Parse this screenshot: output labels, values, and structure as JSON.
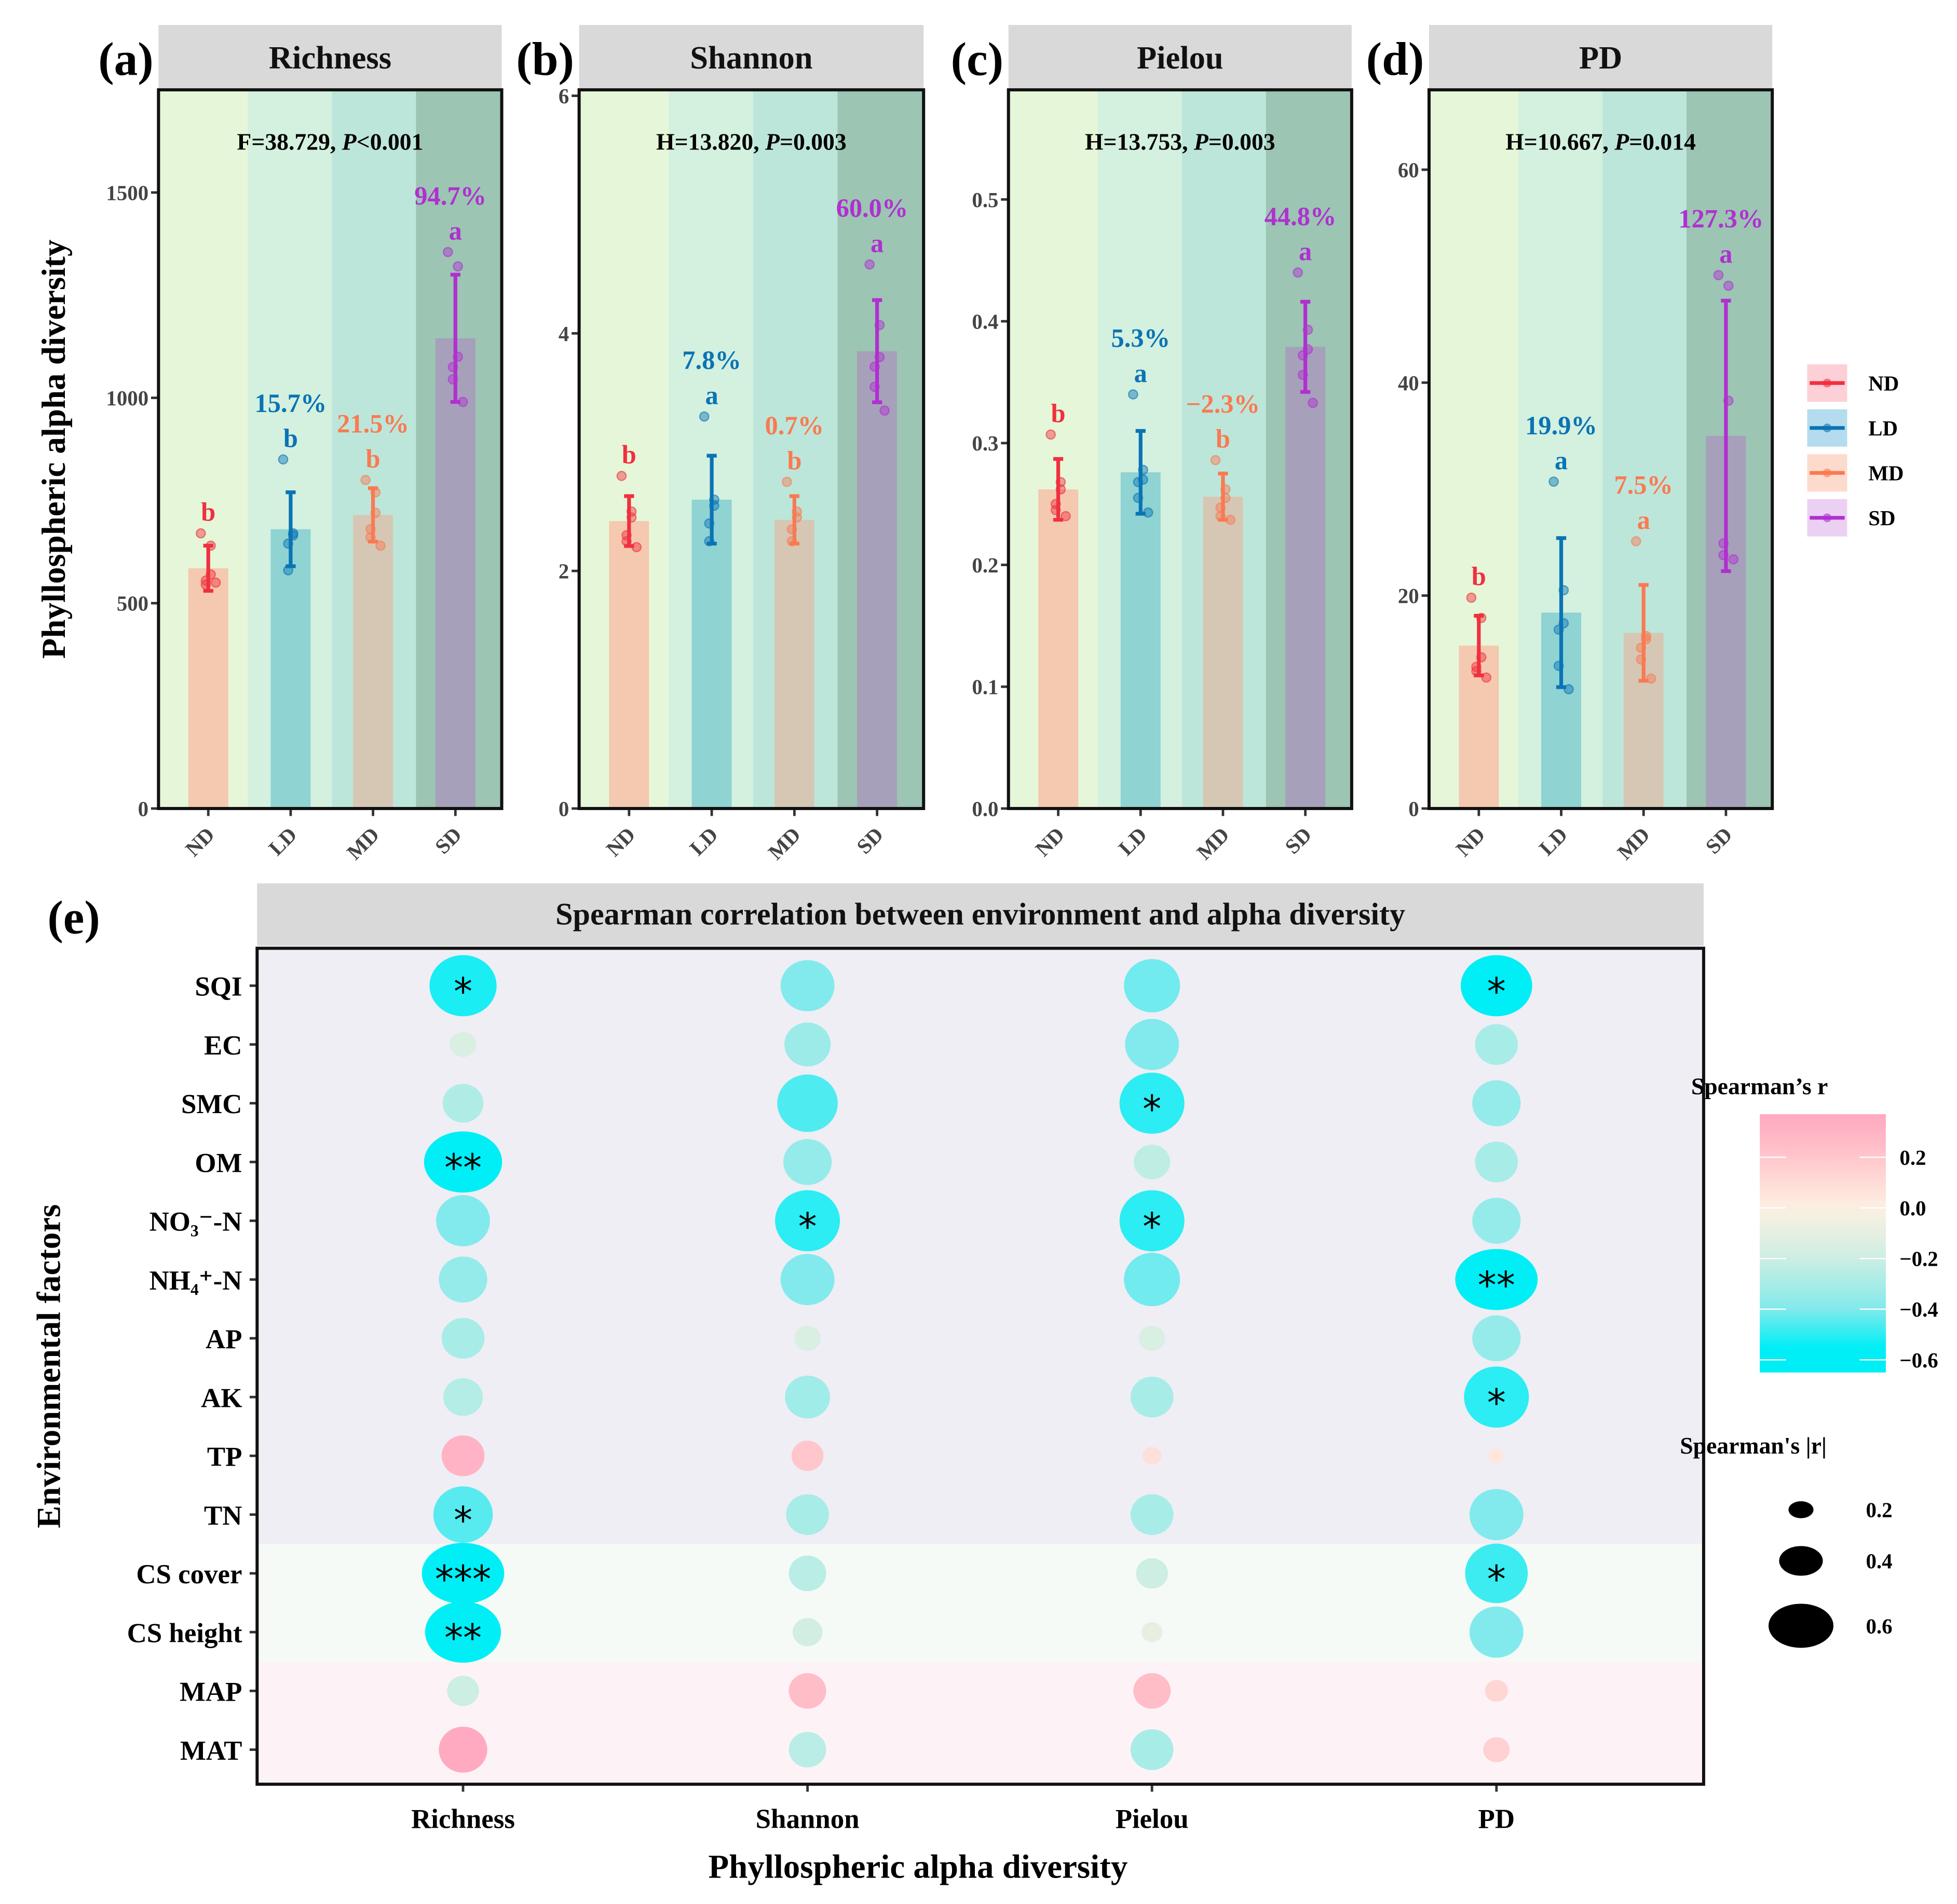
{
  "chart_data": [
    {
      "type": "bar",
      "panel": "(a)",
      "title": "Richness",
      "stat_prefix": "F=38.729, ",
      "stat_p_label": "P",
      "stat_suffix": "<0.001",
      "ylabel": "Phyllospheric alpha diversity",
      "categories": [
        "ND",
        "LD",
        "MD",
        "SD"
      ],
      "ylim": [
        0,
        1750
      ],
      "yticks": [
        0,
        500,
        1000,
        1500
      ],
      "ytick_labels": [
        "0",
        "500",
        "1000",
        "1500"
      ],
      "means": [
        585,
        680,
        715,
        1145
      ],
      "sd": [
        55,
        90,
        65,
        155
      ],
      "points": [
        [
          670,
          640,
          570,
          555,
          545,
          550
        ],
        [
          850,
          670,
          665,
          645,
          580
        ],
        [
          800,
          770,
          720,
          680,
          660,
          640
        ],
        [
          1355,
          1320,
          1100,
          1075,
          1045,
          990
        ]
      ],
      "letters": [
        "b",
        "b",
        "b",
        "a"
      ],
      "percent_change": [
        "",
        "15.7%",
        "21.5%",
        "94.7%"
      ]
    },
    {
      "type": "bar",
      "panel": "(b)",
      "title": "Shannon",
      "stat_prefix": "H=13.820, ",
      "stat_p_label": "P",
      "stat_suffix": "=0.003",
      "categories": [
        "ND",
        "LD",
        "MD",
        "SD"
      ],
      "ylim": [
        0,
        6.05
      ],
      "yticks": [
        0,
        2,
        4,
        6
      ],
      "ytick_labels": [
        "0",
        "2",
        "4",
        "6"
      ],
      "means": [
        2.42,
        2.6,
        2.43,
        3.85
      ],
      "sd": [
        0.21,
        0.37,
        0.2,
        0.43
      ],
      "points": [
        [
          2.8,
          2.5,
          2.45,
          2.3,
          2.25,
          2.2
        ],
        [
          3.3,
          2.6,
          2.55,
          2.4,
          2.25
        ],
        [
          2.75,
          2.5,
          2.45,
          2.35,
          2.25
        ],
        [
          4.58,
          4.07,
          3.8,
          3.72,
          3.55,
          3.35
        ]
      ],
      "letters": [
        "b",
        "a",
        "b",
        "a"
      ],
      "percent_change": [
        "",
        "7.8%",
        "0.7%",
        "60.0%"
      ]
    },
    {
      "type": "bar",
      "panel": "(c)",
      "title": "Pielou",
      "stat_prefix": "H=13.753, ",
      "stat_p_label": "P",
      "stat_suffix": "=0.003",
      "categories": [
        "ND",
        "LD",
        "MD",
        "SD"
      ],
      "ylim": [
        0,
        0.59
      ],
      "yticks": [
        0,
        0.1,
        0.2,
        0.3,
        0.4,
        0.5
      ],
      "ytick_labels": [
        "0.0",
        "0.1",
        "0.2",
        "0.3",
        "0.4",
        "0.5"
      ],
      "means": [
        0.262,
        0.276,
        0.256,
        0.379
      ],
      "sd": [
        0.025,
        0.034,
        0.019,
        0.037
      ],
      "points": [
        [
          0.307,
          0.268,
          0.262,
          0.25,
          0.245,
          0.24
        ],
        [
          0.34,
          0.278,
          0.27,
          0.268,
          0.255,
          0.243
        ],
        [
          0.286,
          0.262,
          0.255,
          0.247,
          0.24,
          0.237
        ],
        [
          0.44,
          0.393,
          0.377,
          0.372,
          0.356,
          0.333
        ]
      ],
      "letters": [
        "b",
        "a",
        "b",
        "a"
      ],
      "percent_change": [
        "",
        "5.3%",
        "−2.3%",
        "44.8%"
      ]
    },
    {
      "type": "bar",
      "panel": "(d)",
      "title": "PD",
      "stat_prefix": "H=10.667, ",
      "stat_p_label": "P",
      "stat_suffix": "=0.014",
      "categories": [
        "ND",
        "LD",
        "MD",
        "SD"
      ],
      "ylim": [
        0,
        67.5
      ],
      "yticks": [
        0,
        20,
        40,
        60
      ],
      "ytick_labels": [
        "0",
        "20",
        "40",
        "60"
      ],
      "means": [
        15.3,
        18.4,
        16.5,
        35
      ],
      "sd": [
        2.8,
        7,
        4.5,
        12.7
      ],
      "points": [
        [
          19.8,
          17.9,
          14.2,
          13.3,
          12.9,
          12.3
        ],
        [
          30.7,
          20.5,
          17.4,
          16.8,
          13.4,
          11.2
        ],
        [
          25.1,
          16.2,
          15.9,
          15.1,
          14,
          12.2
        ],
        [
          50.1,
          49.1,
          38.3,
          24.9,
          23.8,
          23.4
        ]
      ],
      "letters": [
        "b",
        "a",
        "a",
        "a"
      ],
      "percent_change": [
        "",
        "19.9%",
        "7.5%",
        "127.3%"
      ]
    },
    {
      "type": "heatmap",
      "panel": "(e)",
      "title": "Spearman correlation between environment and alpha diversity",
      "xlabel": "Phyllospheric alpha diversity",
      "ylabel": "Environmental factors",
      "columns": [
        "Richness",
        "Shannon",
        "Pielou",
        "PD"
      ],
      "rows": [
        "SQI",
        "EC",
        "SMC",
        "OM",
        "NO₃⁻-N",
        "NH₄⁺-N",
        "AP",
        "AK",
        "TP",
        "TN",
        "CS cover",
        "CS height",
        "MAP",
        "MAT"
      ],
      "r": [
        [
          -0.52,
          -0.4,
          -0.42,
          -0.56
        ],
        [
          -0.15,
          -0.33,
          -0.4,
          -0.3
        ],
        [
          -0.28,
          -0.46,
          -0.5,
          -0.35
        ],
        [
          -0.62,
          -0.35,
          -0.24,
          -0.3
        ],
        [
          -0.4,
          -0.5,
          -0.5,
          -0.35
        ],
        [
          -0.35,
          -0.4,
          -0.42,
          -0.66
        ],
        [
          -0.3,
          -0.15,
          -0.15,
          -0.35
        ],
        [
          -0.27,
          -0.32,
          -0.3,
          -0.5
        ],
        [
          0.3,
          0.2,
          0.08,
          0.05
        ],
        [
          -0.45,
          -0.3,
          -0.3,
          -0.4
        ],
        [
          -0.66,
          -0.25,
          -0.2,
          -0.48
        ],
        [
          -0.6,
          -0.18,
          -0.1,
          -0.4
        ],
        [
          -0.2,
          0.25,
          0.25,
          0.12
        ],
        [
          0.35,
          -0.25,
          -0.3,
          0.15
        ]
      ],
      "significance": [
        [
          "*",
          "",
          "",
          "*"
        ],
        [
          "",
          "",
          "",
          ""
        ],
        [
          "",
          "",
          "*",
          ""
        ],
        [
          "**",
          "",
          "",
          ""
        ],
        [
          "",
          "*",
          "*",
          ""
        ],
        [
          "",
          "",
          "",
          "**"
        ],
        [
          "",
          "",
          "",
          ""
        ],
        [
          "",
          "",
          "",
          "*"
        ],
        [
          "",
          "",
          "",
          ""
        ],
        [
          "*",
          "",
          "",
          ""
        ],
        [
          "***",
          "",
          "",
          "*"
        ],
        [
          "**",
          "",
          "",
          ""
        ],
        [
          "",
          "",
          "",
          ""
        ],
        [
          "",
          "",
          "",
          ""
        ]
      ],
      "color_legend_title": "Spearman’s r",
      "color_ticks": [
        0.2,
        0.0,
        -0.2,
        -0.4,
        -0.6
      ],
      "color_tick_labels": [
        "0.2",
        "0.0",
        "−0.2",
        "−0.4",
        "−0.6"
      ],
      "size_legend_title": "Spearman's |r|",
      "size_ticks": [
        0.2,
        0.4,
        0.6
      ],
      "size_tick_labels": [
        "0.2",
        "0.4",
        "0.6"
      ]
    }
  ],
  "group_legend": [
    {
      "label": "ND",
      "color": "#f0303f",
      "fill": "#fcd0d6"
    },
    {
      "label": "LD",
      "color": "#0a74b4",
      "fill": "#b5dcee"
    },
    {
      "label": "MD",
      "color": "#f97a52",
      "fill": "#fddbcc"
    },
    {
      "label": "SD",
      "color": "#b030d0",
      "fill": "#ecd0f3"
    }
  ],
  "colors": {
    "bands": [
      "#e5f7d8",
      "#d4f0df",
      "#bde6da",
      "#9cc5b3"
    ],
    "bars": [
      "#f4c9b0",
      "#8fd3d3",
      "#d6c7b4",
      "#a6a0ba"
    ],
    "strip": "#d9d9d9"
  }
}
